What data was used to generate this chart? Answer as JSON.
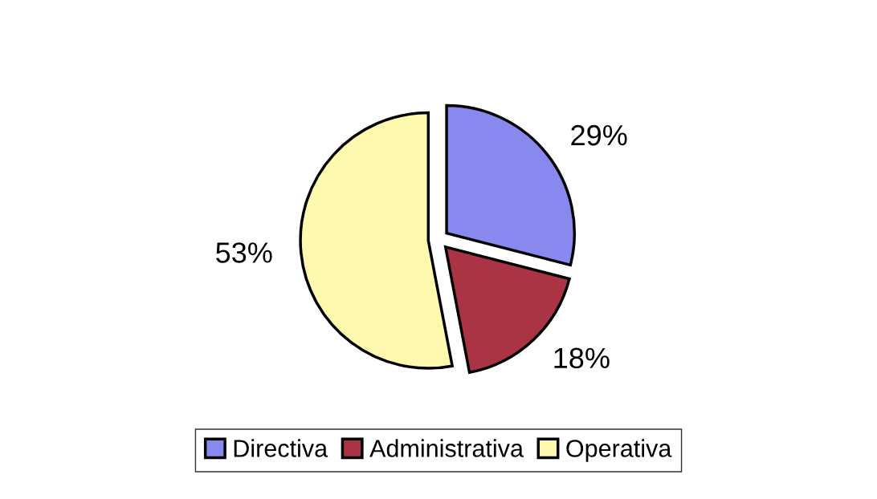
{
  "chart_data": {
    "type": "pie",
    "categories": [
      "Directiva",
      "Administrativa",
      "Operativa"
    ],
    "values": [
      29,
      18,
      53
    ],
    "colors": [
      "#8888ee",
      "#aa3344",
      "#fff9b0"
    ],
    "value_labels": [
      "29%",
      "18%",
      "53%"
    ],
    "legend": "bottom"
  }
}
